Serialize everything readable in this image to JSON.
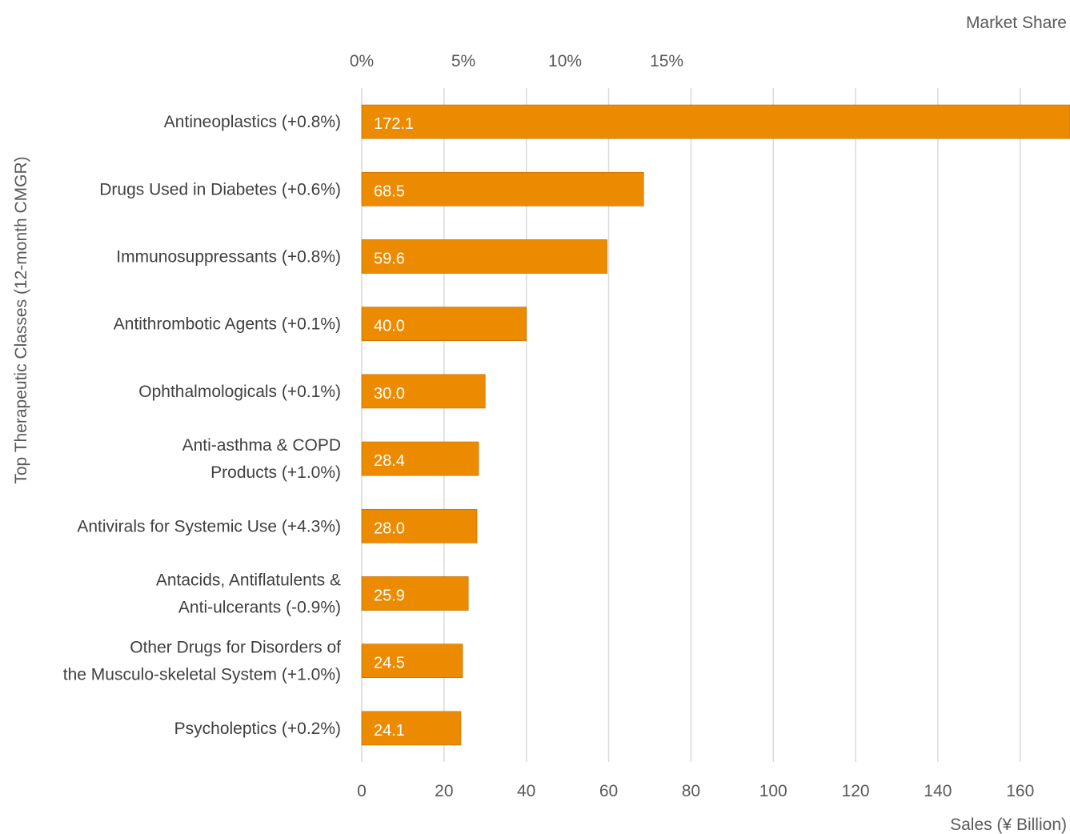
{
  "chart_data": {
    "type": "bar",
    "orientation": "horizontal",
    "categories": [
      [
        "Antineoplastics (+0.8%)"
      ],
      [
        "Drugs Used in Diabetes (+0.6%)"
      ],
      [
        "Immunosuppressants (+0.8%)"
      ],
      [
        "Antithrombotic Agents (+0.1%)"
      ],
      [
        "Ophthalmologicals (+0.1%)"
      ],
      [
        "Anti-asthma & COPD",
        "Products (+1.0%)"
      ],
      [
        "Antivirals for Systemic Use (+4.3%)"
      ],
      [
        "Antacids, Antiflatulents &",
        "Anti-ulcerants (-0.9%)"
      ],
      [
        "Other Drugs for Disorders of",
        "the Musculo-skeletal System (+1.0%)"
      ],
      [
        "Psycholeptics (+0.2%)"
      ]
    ],
    "values": [
      172.1,
      68.5,
      59.6,
      40.0,
      30.0,
      28.4,
      28.0,
      25.9,
      24.5,
      24.1
    ],
    "value_labels": [
      "172.1",
      "68.5",
      "59.6",
      "40.0",
      "30.0",
      "28.4",
      "28.0",
      "25.9",
      "24.5",
      "24.1"
    ],
    "xlabel": "Sales (¥ Billion)",
    "ylabel": "Top Therapeutic Classes (12-month CMGR)",
    "x2label": "Market Share",
    "xlim": [
      0,
      172.1
    ],
    "x_ticks": [
      0,
      20,
      40,
      60,
      80,
      100,
      120,
      140,
      160
    ],
    "x_tick_labels": [
      "0",
      "20",
      "40",
      "60",
      "80",
      "100",
      "120",
      "140",
      "160"
    ],
    "x2_ticks_as_primary_units": [
      0,
      24.7,
      49.4,
      74.1
    ],
    "x2_tick_labels": [
      "0%",
      "5%",
      "10%",
      "15%"
    ],
    "grid": true,
    "bar_color": "#ED8B00",
    "label_color": "#FFFFFF",
    "grid_color": "#D9D9D9",
    "text_color": "#595959"
  }
}
